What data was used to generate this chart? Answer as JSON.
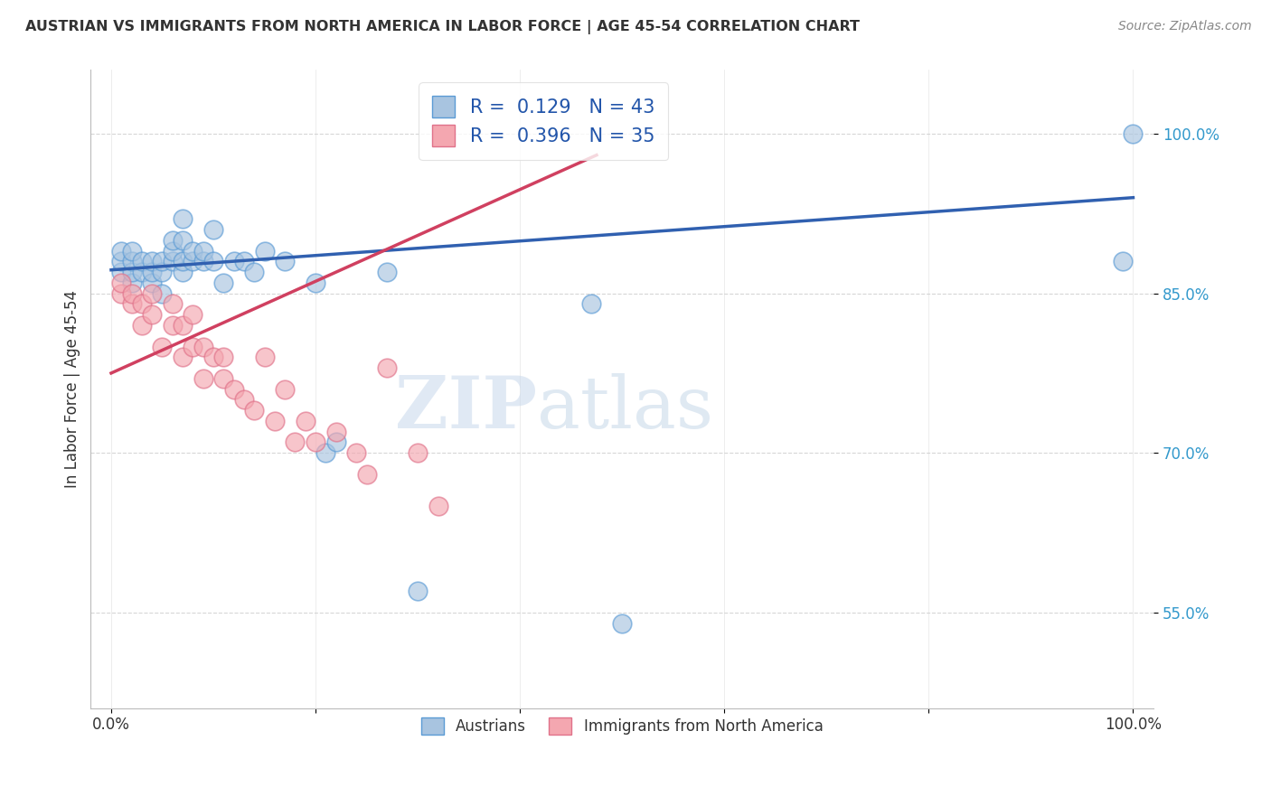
{
  "title": "AUSTRIAN VS IMMIGRANTS FROM NORTH AMERICA IN LABOR FORCE | AGE 45-54 CORRELATION CHART",
  "source": "Source: ZipAtlas.com",
  "ylabel": "In Labor Force | Age 45-54",
  "xlim": [
    -0.02,
    1.02
  ],
  "ylim": [
    0.46,
    1.06
  ],
  "yticks": [
    0.55,
    0.7,
    0.85,
    1.0
  ],
  "ytick_labels": [
    "55.0%",
    "70.0%",
    "85.0%",
    "100.0%"
  ],
  "xticks": [
    0.0,
    0.2,
    0.4,
    0.6,
    0.8,
    1.0
  ],
  "xtick_labels": [
    "0.0%",
    "",
    "",
    "",
    "",
    "100.0%"
  ],
  "blue_R": "0.129",
  "blue_N": "43",
  "pink_R": "0.396",
  "pink_N": "35",
  "blue_fill_color": "#A8C4E0",
  "blue_edge_color": "#5B9BD5",
  "pink_fill_color": "#F4A7B0",
  "pink_edge_color": "#E0728A",
  "blue_line_color": "#3060B0",
  "pink_line_color": "#D04060",
  "watermark_zip": "ZIP",
  "watermark_atlas": "atlas",
  "blue_line_x0": 0.0,
  "blue_line_x1": 1.0,
  "blue_line_y0": 0.872,
  "blue_line_y1": 0.94,
  "pink_line_x0": 0.0,
  "pink_line_x1": 0.475,
  "pink_line_y0": 0.775,
  "pink_line_y1": 0.98,
  "blue_points_x": [
    0.01,
    0.01,
    0.01,
    0.02,
    0.02,
    0.02,
    0.02,
    0.03,
    0.03,
    0.04,
    0.04,
    0.04,
    0.05,
    0.05,
    0.05,
    0.06,
    0.06,
    0.06,
    0.07,
    0.07,
    0.07,
    0.07,
    0.08,
    0.08,
    0.09,
    0.09,
    0.1,
    0.1,
    0.11,
    0.12,
    0.13,
    0.14,
    0.15,
    0.17,
    0.2,
    0.21,
    0.22,
    0.27,
    0.3,
    0.47,
    0.5,
    0.99,
    1.0
  ],
  "blue_points_y": [
    0.87,
    0.88,
    0.89,
    0.86,
    0.87,
    0.88,
    0.89,
    0.87,
    0.88,
    0.86,
    0.87,
    0.88,
    0.85,
    0.87,
    0.88,
    0.88,
    0.89,
    0.9,
    0.87,
    0.88,
    0.9,
    0.92,
    0.88,
    0.89,
    0.88,
    0.89,
    0.88,
    0.91,
    0.86,
    0.88,
    0.88,
    0.87,
    0.89,
    0.88,
    0.86,
    0.7,
    0.71,
    0.87,
    0.57,
    0.84,
    0.54,
    0.88,
    1.0
  ],
  "pink_points_x": [
    0.01,
    0.01,
    0.02,
    0.02,
    0.03,
    0.03,
    0.04,
    0.04,
    0.05,
    0.06,
    0.06,
    0.07,
    0.07,
    0.08,
    0.08,
    0.09,
    0.09,
    0.1,
    0.11,
    0.11,
    0.12,
    0.13,
    0.14,
    0.15,
    0.16,
    0.17,
    0.18,
    0.19,
    0.2,
    0.22,
    0.24,
    0.25,
    0.27,
    0.3,
    0.32
  ],
  "pink_points_y": [
    0.85,
    0.86,
    0.84,
    0.85,
    0.82,
    0.84,
    0.83,
    0.85,
    0.8,
    0.82,
    0.84,
    0.79,
    0.82,
    0.8,
    0.83,
    0.77,
    0.8,
    0.79,
    0.77,
    0.79,
    0.76,
    0.75,
    0.74,
    0.79,
    0.73,
    0.76,
    0.71,
    0.73,
    0.71,
    0.72,
    0.7,
    0.68,
    0.78,
    0.7,
    0.65
  ]
}
